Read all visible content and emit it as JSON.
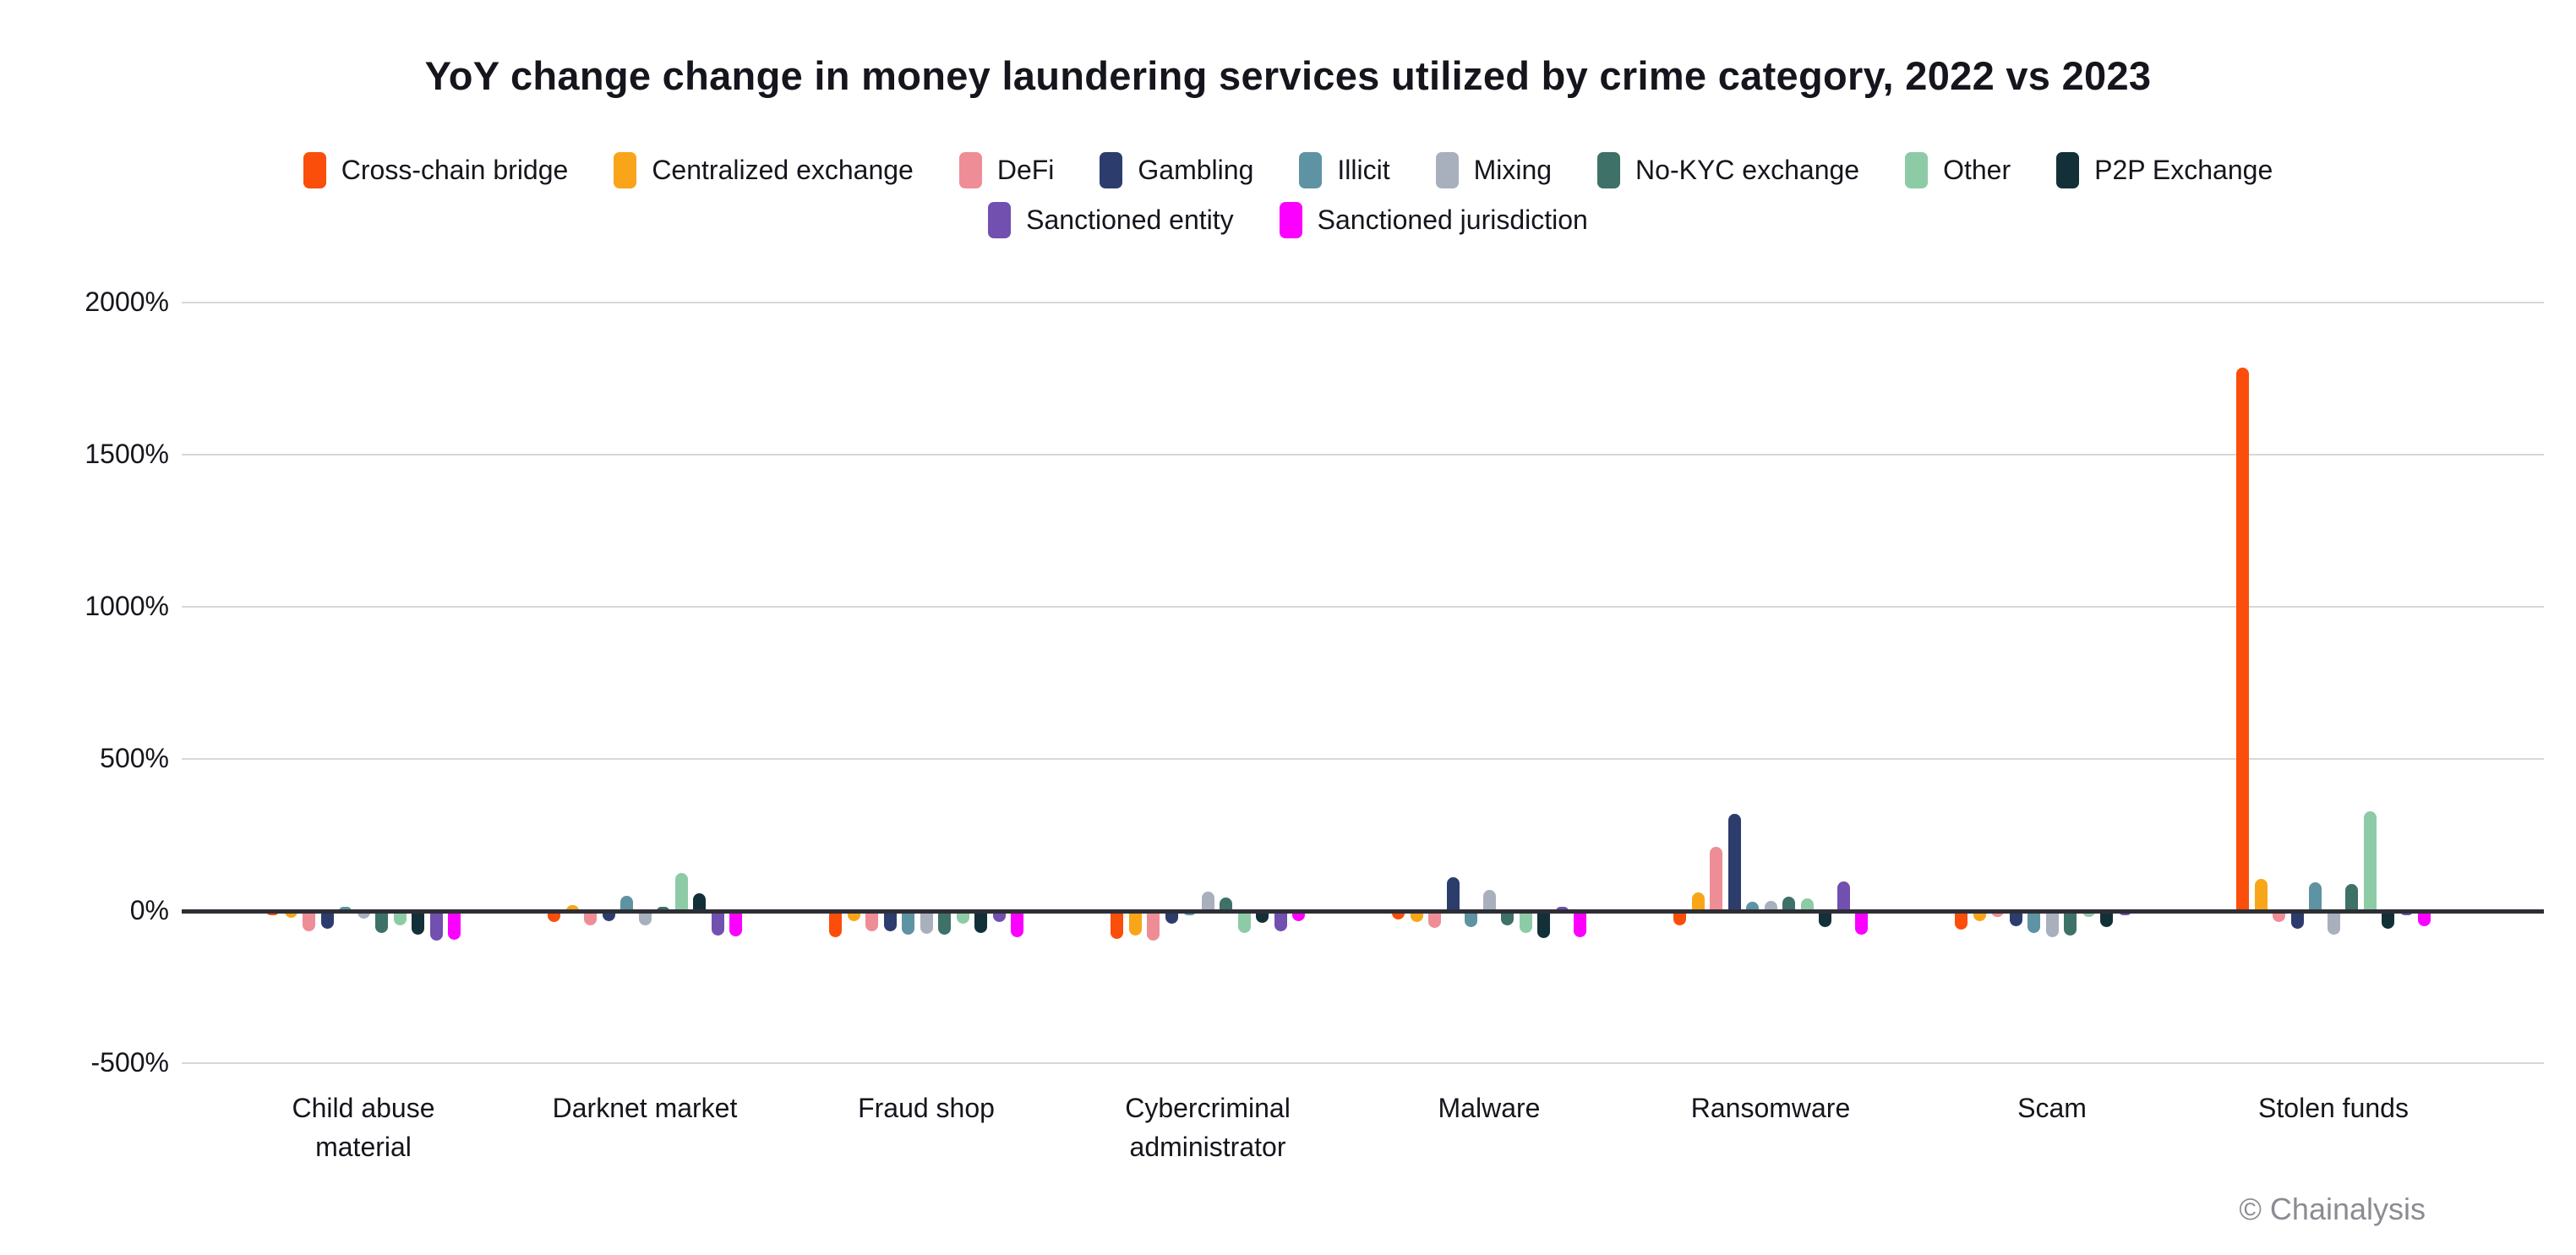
{
  "watermark": "© Chainalysis",
  "chart_data": {
    "type": "bar",
    "title": "YoY change change in money laundering services utilized by crime category, 2022 vs 2023",
    "xlabel": "",
    "ylabel": "",
    "ytick_suffix": "%",
    "yticks": [
      2000,
      1500,
      1000,
      500,
      0,
      -500
    ],
    "ylim": [
      -500,
      2050
    ],
    "grid": true,
    "legend_position": "top",
    "categories": [
      "Child abuse\nmaterial",
      "Darknet market",
      "Fraud shop",
      "Cybercriminal\nadministrator",
      "Malware",
      "Ransomware",
      "Scam",
      "Stolen funds"
    ],
    "series": [
      {
        "name": "Cross-chain bridge",
        "color": "#fa4e0a",
        "values": [
          -8,
          -35,
          -85,
          -92,
          -28,
          -48,
          -60,
          1786
        ]
      },
      {
        "name": "Centralized exchange",
        "color": "#f9a51a",
        "values": [
          -23,
          20,
          -33,
          -80,
          -35,
          62,
          -33,
          106
        ]
      },
      {
        "name": "DeFi",
        "color": "#ee8d96",
        "values": [
          -67,
          -48,
          -66,
          -98,
          -55,
          212,
          -20,
          -35
        ]
      },
      {
        "name": "Gambling",
        "color": "#2c3d6d",
        "values": [
          -58,
          -33,
          -68,
          -43,
          112,
          320,
          -50,
          -57
        ]
      },
      {
        "name": "Illicit",
        "color": "#5e93a4",
        "values": [
          10,
          50,
          -77,
          -13,
          -53,
          30,
          -73,
          95
        ]
      },
      {
        "name": "Mixing",
        "color": "#a8b0bd",
        "values": [
          -25,
          -48,
          -75,
          63,
          69,
          33,
          -85,
          -78
        ]
      },
      {
        "name": "No-KYC exchange",
        "color": "#3e7168",
        "values": [
          -72,
          5,
          -77,
          45,
          -48,
          48,
          -80,
          88
        ]
      },
      {
        "name": "Other",
        "color": "#8dcba6",
        "values": [
          -47,
          126,
          -43,
          -71,
          -72,
          41,
          -20,
          329
        ]
      },
      {
        "name": "P2P Exchange",
        "color": "#133038",
        "values": [
          -79,
          59,
          -73,
          -39,
          -88,
          -54,
          -52,
          -57
        ]
      },
      {
        "name": "Sanctioned entity",
        "color": "#7150b0",
        "values": [
          -97,
          -81,
          -35,
          -67,
          12,
          98,
          -5,
          -15
        ]
      },
      {
        "name": "Sanctioned jurisdiction",
        "color": "#fb00ff",
        "values": [
          -95,
          -83,
          -86,
          -32,
          -86,
          -77,
          0,
          -50
        ]
      }
    ],
    "legend_rows": [
      9,
      2
    ]
  }
}
